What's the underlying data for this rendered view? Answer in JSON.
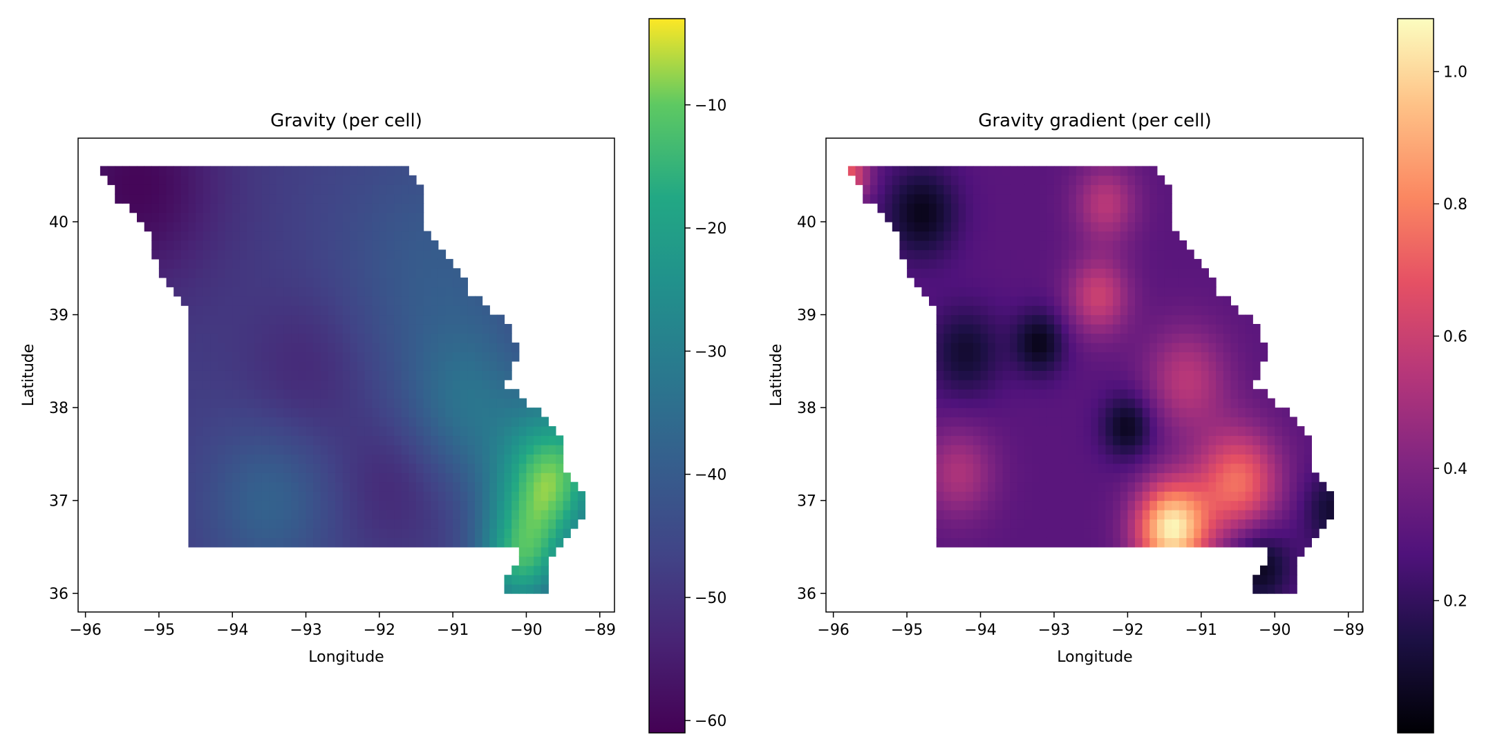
{
  "chart_data": [
    {
      "type": "heatmap",
      "title": "Gravity (per cell)",
      "xlabel": "Longitude",
      "ylabel": "Latitude",
      "xlim": [
        -96.1,
        -88.8
      ],
      "ylim": [
        35.8,
        40.9
      ],
      "xticks": [
        -96,
        -95,
        -94,
        -93,
        -92,
        -91,
        -90,
        -89
      ],
      "xtick_labels": [
        "−96",
        "−95",
        "−94",
        "−93",
        "−92",
        "−91",
        "−90",
        "−89"
      ],
      "yticks": [
        36,
        37,
        38,
        39,
        40
      ],
      "ytick_labels": [
        "36",
        "37",
        "38",
        "39",
        "40"
      ],
      "colormap": "viridis",
      "colorbar": {
        "range": [
          -61,
          -3
        ],
        "ticks": [
          -60,
          -50,
          -40,
          -30,
          -20,
          -10
        ],
        "tick_labels": [
          "−60",
          "−50",
          "−40",
          "−30",
          "−20",
          "−10"
        ]
      },
      "field": {
        "base": -48,
        "blobs": [
          {
            "lon": -95.3,
            "lat": 40.4,
            "amp": -12,
            "sigma": 0.8
          },
          {
            "lon": -93.0,
            "lat": 38.4,
            "amp": -5,
            "sigma": 0.6
          },
          {
            "lon": -91.8,
            "lat": 37.2,
            "amp": -5,
            "sigma": 0.5
          },
          {
            "lon": -91.2,
            "lat": 39.5,
            "amp": 8,
            "sigma": 1.0
          },
          {
            "lon": -90.8,
            "lat": 38.0,
            "amp": 12,
            "sigma": 0.6
          },
          {
            "lon": -93.5,
            "lat": 37.0,
            "amp": 10,
            "sigma": 0.6
          },
          {
            "lon": -89.8,
            "lat": 37.0,
            "amp": 25,
            "sigma": 0.5
          },
          {
            "lon": -89.5,
            "lat": 37.5,
            "amp": 20,
            "sigma": 0.5
          },
          {
            "lon": -90.1,
            "lat": 36.3,
            "amp": 25,
            "sigma": 0.4
          }
        ]
      },
      "grid": false
    },
    {
      "type": "heatmap",
      "title": "Gravity gradient (per cell)",
      "xlabel": "Longitude",
      "ylabel": "Latitude",
      "xlim": [
        -96.1,
        -88.8
      ],
      "ylim": [
        35.8,
        40.9
      ],
      "xticks": [
        -96,
        -95,
        -94,
        -93,
        -92,
        -91,
        -90,
        -89
      ],
      "xtick_labels": [
        "−96",
        "−95",
        "−94",
        "−93",
        "−92",
        "−91",
        "−90",
        "−89"
      ],
      "yticks": [
        36,
        37,
        38,
        39,
        40
      ],
      "ytick_labels": [
        "36",
        "37",
        "38",
        "39",
        "40"
      ],
      "colormap": "magma",
      "colorbar": {
        "range": [
          0.0,
          1.08
        ],
        "ticks": [
          0.2,
          0.4,
          0.6,
          0.8,
          1.0
        ],
        "tick_labels": [
          "0.2",
          "0.4",
          "0.6",
          "0.8",
          "1.0"
        ]
      },
      "field": {
        "base": 0.3,
        "blobs": [
          {
            "lon": -91.4,
            "lat": 36.7,
            "amp": 0.75,
            "sigma": 0.35
          },
          {
            "lon": -90.5,
            "lat": 37.2,
            "amp": 0.45,
            "sigma": 0.4
          },
          {
            "lon": -92.4,
            "lat": 39.2,
            "amp": 0.3,
            "sigma": 0.3
          },
          {
            "lon": -92.3,
            "lat": 40.2,
            "amp": 0.25,
            "sigma": 0.3
          },
          {
            "lon": -91.2,
            "lat": 38.3,
            "amp": 0.25,
            "sigma": 0.4
          },
          {
            "lon": -94.3,
            "lat": 37.3,
            "amp": 0.22,
            "sigma": 0.35
          },
          {
            "lon": -95.8,
            "lat": 40.5,
            "amp": 0.4,
            "sigma": 0.2
          },
          {
            "lon": -94.8,
            "lat": 40.1,
            "amp": -0.25,
            "sigma": 0.35
          },
          {
            "lon": -93.2,
            "lat": 38.7,
            "amp": -0.25,
            "sigma": 0.25
          },
          {
            "lon": -92.0,
            "lat": 37.8,
            "amp": -0.25,
            "sigma": 0.25
          },
          {
            "lon": -94.2,
            "lat": 38.6,
            "amp": -0.2,
            "sigma": 0.35
          },
          {
            "lon": -90.2,
            "lat": 36.3,
            "amp": -0.25,
            "sigma": 0.3
          },
          {
            "lon": -89.2,
            "lat": 36.9,
            "amp": -0.2,
            "sigma": 0.3
          }
        ]
      },
      "grid": false
    }
  ]
}
